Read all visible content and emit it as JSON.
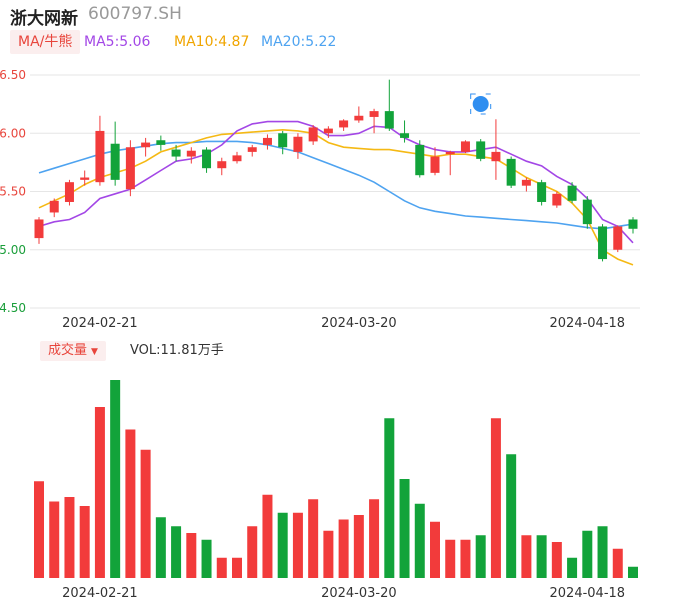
{
  "header": {
    "name": "浙大网新",
    "code": "600797.SH"
  },
  "ma_bar": {
    "toggle_label": "MA/牛熊",
    "ma5": "MA5:5.06",
    "ma10": "MA10:4.87",
    "ma20": "MA20:5.22"
  },
  "volume_bar": {
    "toggle_label": "成交量",
    "value": "VOL:11.81万手"
  },
  "colors": {
    "up": "#f23b3b",
    "down": "#12a33a",
    "ma5": "#a347e6",
    "ma10": "#f5b914",
    "ma20": "#4ea3f0",
    "grid": "#e6e6e6"
  },
  "chart_data": {
    "type": "candlestick",
    "y_ticks": [
      "6.50",
      "6.00",
      "5.50",
      "5.00",
      "4.50"
    ],
    "ylim": [
      4.5,
      6.5
    ],
    "x_tick_labels": [
      {
        "index": 4,
        "label": "2024-02-21"
      },
      {
        "index": 21,
        "label": "2024-03-20"
      },
      {
        "index": 36,
        "label": "2024-04-18"
      }
    ],
    "candles": [
      {
        "o": 5.1,
        "c": 5.26,
        "h": 5.28,
        "l": 5.05
      },
      {
        "o": 5.32,
        "c": 5.42,
        "h": 5.44,
        "l": 5.28
      },
      {
        "o": 5.41,
        "c": 5.58,
        "h": 5.6,
        "l": 5.38
      },
      {
        "o": 5.6,
        "c": 5.62,
        "h": 5.68,
        "l": 5.55
      },
      {
        "o": 5.58,
        "c": 6.02,
        "h": 6.15,
        "l": 5.55
      },
      {
        "o": 5.91,
        "c": 5.6,
        "h": 6.1,
        "l": 5.55
      },
      {
        "o": 5.52,
        "c": 5.88,
        "h": 5.94,
        "l": 5.46
      },
      {
        "o": 5.88,
        "c": 5.92,
        "h": 5.96,
        "l": 5.8
      },
      {
        "o": 5.94,
        "c": 5.9,
        "h": 5.98,
        "l": 5.85
      },
      {
        "o": 5.86,
        "c": 5.8,
        "h": 5.9,
        "l": 5.76
      },
      {
        "o": 5.8,
        "c": 5.85,
        "h": 5.88,
        "l": 5.74
      },
      {
        "o": 5.86,
        "c": 5.7,
        "h": 5.88,
        "l": 5.66
      },
      {
        "o": 5.7,
        "c": 5.76,
        "h": 5.79,
        "l": 5.64
      },
      {
        "o": 5.76,
        "c": 5.81,
        "h": 5.84,
        "l": 5.74
      },
      {
        "o": 5.84,
        "c": 5.88,
        "h": 5.9,
        "l": 5.8
      },
      {
        "o": 5.9,
        "c": 5.96,
        "h": 5.99,
        "l": 5.86
      },
      {
        "o": 6.0,
        "c": 5.88,
        "h": 6.02,
        "l": 5.82
      },
      {
        "o": 5.84,
        "c": 5.97,
        "h": 6.0,
        "l": 5.78
      },
      {
        "o": 5.93,
        "c": 6.05,
        "h": 6.07,
        "l": 5.9
      },
      {
        "o": 6.0,
        "c": 6.04,
        "h": 6.06,
        "l": 5.96
      },
      {
        "o": 6.05,
        "c": 6.11,
        "h": 6.12,
        "l": 6.02
      },
      {
        "o": 6.11,
        "c": 6.15,
        "h": 6.23,
        "l": 6.09
      },
      {
        "o": 6.14,
        "c": 6.19,
        "h": 6.21,
        "l": 6.0
      },
      {
        "o": 6.19,
        "c": 6.04,
        "h": 6.46,
        "l": 6.02
      },
      {
        "o": 6.0,
        "c": 5.96,
        "h": 6.11,
        "l": 5.92
      },
      {
        "o": 5.9,
        "c": 5.64,
        "h": 5.94,
        "l": 5.62
      },
      {
        "o": 5.66,
        "c": 5.8,
        "h": 5.88,
        "l": 5.64
      },
      {
        "o": 5.82,
        "c": 5.84,
        "h": 5.85,
        "l": 5.64
      },
      {
        "o": 5.84,
        "c": 5.93,
        "h": 5.94,
        "l": 5.83
      },
      {
        "o": 5.93,
        "c": 5.78,
        "h": 5.95,
        "l": 5.76
      },
      {
        "o": 5.76,
        "c": 5.84,
        "h": 6.12,
        "l": 5.6
      },
      {
        "o": 5.78,
        "c": 5.55,
        "h": 5.8,
        "l": 5.53
      },
      {
        "o": 5.55,
        "c": 5.6,
        "h": 5.62,
        "l": 5.5
      },
      {
        "o": 5.58,
        "c": 5.41,
        "h": 5.6,
        "l": 5.38
      },
      {
        "o": 5.38,
        "c": 5.48,
        "h": 5.5,
        "l": 5.36
      },
      {
        "o": 5.55,
        "c": 5.42,
        "h": 5.58,
        "l": 5.4
      },
      {
        "o": 5.43,
        "c": 5.22,
        "h": 5.46,
        "l": 5.18
      },
      {
        "o": 5.2,
        "c": 4.92,
        "h": 5.22,
        "l": 4.9
      },
      {
        "o": 5.0,
        "c": 5.2,
        "h": 5.21,
        "l": 4.98
      },
      {
        "o": 5.26,
        "c": 5.18,
        "h": 5.28,
        "l": 5.14
      }
    ],
    "ma5": [
      5.2,
      5.24,
      5.26,
      5.32,
      5.44,
      5.48,
      5.52,
      5.6,
      5.68,
      5.76,
      5.78,
      5.82,
      5.9,
      6.02,
      6.08,
      6.1,
      6.1,
      6.1,
      6.06,
      5.98,
      5.98,
      6.0,
      6.06,
      6.05,
      5.96,
      5.9,
      5.86,
      5.84,
      5.84,
      5.86,
      5.88,
      5.82,
      5.76,
      5.72,
      5.63,
      5.56,
      5.44,
      5.26,
      5.2,
      5.06
    ],
    "ma10": [
      5.36,
      5.42,
      5.48,
      5.56,
      5.62,
      5.66,
      5.7,
      5.76,
      5.84,
      5.88,
      5.92,
      5.96,
      5.99,
      6.0,
      6.01,
      6.02,
      6.03,
      6.02,
      6.0,
      5.92,
      5.88,
      5.87,
      5.86,
      5.86,
      5.84,
      5.82,
      5.8,
      5.82,
      5.82,
      5.8,
      5.78,
      5.7,
      5.62,
      5.56,
      5.5,
      5.4,
      5.26,
      5.0,
      4.92,
      4.87
    ],
    "ma20": [
      5.66,
      5.7,
      5.74,
      5.78,
      5.82,
      5.85,
      5.87,
      5.89,
      5.91,
      5.92,
      5.92,
      5.93,
      5.93,
      5.93,
      5.92,
      5.9,
      5.87,
      5.84,
      5.79,
      5.74,
      5.69,
      5.64,
      5.58,
      5.5,
      5.42,
      5.36,
      5.33,
      5.31,
      5.29,
      5.28,
      5.27,
      5.26,
      5.25,
      5.24,
      5.23,
      5.21,
      5.19,
      5.18,
      5.2,
      5.22
    ],
    "volume": [
      43,
      34,
      36,
      32,
      76,
      88,
      66,
      57,
      27,
      23,
      20,
      17,
      9,
      9,
      23,
      37,
      29,
      29,
      35,
      21,
      26,
      28,
      35,
      71,
      44,
      33,
      25,
      17,
      17,
      19,
      71,
      55,
      19,
      19,
      16,
      9,
      21,
      23,
      13,
      5
    ],
    "volume_max": 88,
    "annotation_icon": "tag-icon",
    "annotation_index": 29
  }
}
